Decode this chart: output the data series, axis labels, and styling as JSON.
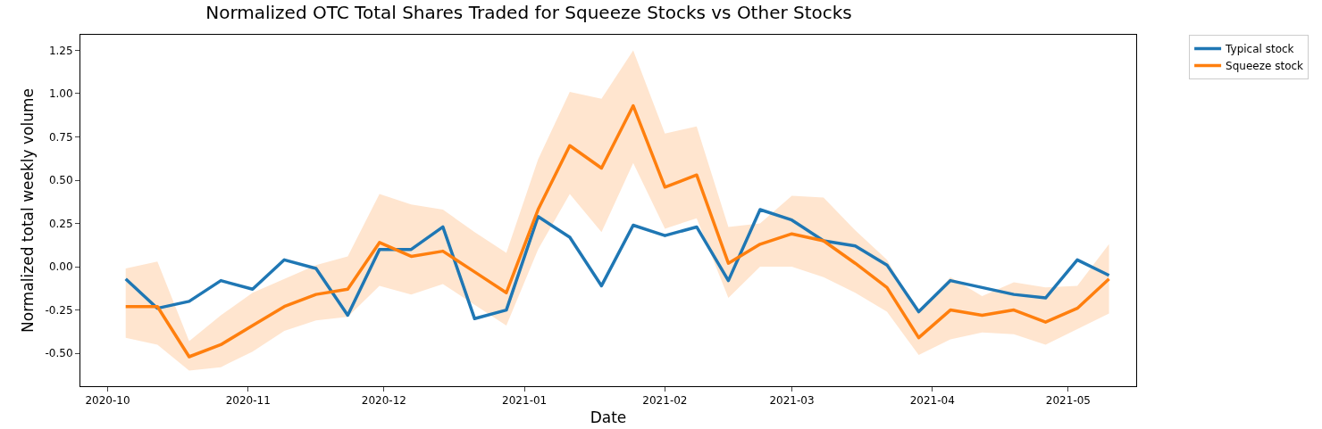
{
  "chart_data": {
    "type": "line",
    "title": "Normalized OTC Total Shares Traded for Squeeze Stocks vs Other Stocks",
    "xlabel": "Date",
    "ylabel": "Normalized total weekly volume",
    "x": [
      "2020-10-05",
      "2020-10-12",
      "2020-10-19",
      "2020-10-26",
      "2020-11-02",
      "2020-11-09",
      "2020-11-16",
      "2020-11-23",
      "2020-11-30",
      "2020-12-07",
      "2020-12-14",
      "2020-12-21",
      "2020-12-28",
      "2021-01-04",
      "2021-01-11",
      "2021-01-18",
      "2021-01-25",
      "2021-02-01",
      "2021-02-08",
      "2021-02-15",
      "2021-02-22",
      "2021-03-01",
      "2021-03-08",
      "2021-03-15",
      "2021-03-22",
      "2021-03-29",
      "2021-04-05",
      "2021-04-12",
      "2021-04-19",
      "2021-04-26",
      "2021-05-03",
      "2021-05-10"
    ],
    "series": [
      {
        "name": "Typical stock",
        "color": "#1f77b4",
        "values": [
          -0.07,
          -0.24,
          -0.2,
          -0.08,
          -0.13,
          0.04,
          -0.01,
          -0.28,
          0.1,
          0.1,
          0.23,
          -0.3,
          -0.25,
          0.29,
          0.17,
          -0.11,
          0.24,
          0.18,
          0.23,
          -0.08,
          0.33,
          0.27,
          0.15,
          0.12,
          0.01,
          -0.26,
          -0.08,
          -0.12,
          -0.16,
          -0.18,
          0.04,
          -0.05
        ]
      },
      {
        "name": "Squeeze stock",
        "color": "#ff7f0e",
        "values": [
          -0.23,
          -0.23,
          -0.52,
          -0.45,
          -0.34,
          -0.23,
          -0.16,
          -0.13,
          0.14,
          0.06,
          0.09,
          -0.03,
          -0.15,
          0.33,
          0.7,
          0.57,
          0.93,
          0.46,
          0.53,
          0.02,
          0.13,
          0.19,
          0.15,
          0.02,
          -0.12,
          -0.41,
          -0.25,
          -0.28,
          -0.25,
          -0.32,
          -0.24,
          -0.07
        ],
        "lower": [
          -0.41,
          -0.45,
          -0.6,
          -0.58,
          -0.49,
          -0.37,
          -0.31,
          -0.29,
          -0.11,
          -0.16,
          -0.1,
          -0.22,
          -0.34,
          0.1,
          0.42,
          0.2,
          0.6,
          0.22,
          0.28,
          -0.18,
          0.0,
          0.0,
          -0.06,
          -0.15,
          -0.26,
          -0.51,
          -0.42,
          -0.38,
          -0.39,
          -0.45,
          -0.36,
          -0.27
        ],
        "upper": [
          -0.01,
          0.03,
          -0.43,
          -0.28,
          -0.15,
          -0.07,
          0.01,
          0.06,
          0.42,
          0.36,
          0.33,
          0.2,
          0.08,
          0.62,
          1.01,
          0.97,
          1.25,
          0.77,
          0.81,
          0.23,
          0.25,
          0.41,
          0.4,
          0.21,
          0.04,
          -0.27,
          -0.06,
          -0.17,
          -0.09,
          -0.12,
          -0.11,
          0.13
        ]
      }
    ],
    "xlim": [
      "2020-09-25",
      "2021-05-16"
    ],
    "xticks": [
      {
        "value": "2020-10-01",
        "label": "2020-10"
      },
      {
        "value": "2020-11-01",
        "label": "2020-11"
      },
      {
        "value": "2020-12-01",
        "label": "2020-12"
      },
      {
        "value": "2021-01-01",
        "label": "2021-01"
      },
      {
        "value": "2021-02-01",
        "label": "2021-02"
      },
      {
        "value": "2021-03-01",
        "label": "2021-03"
      },
      {
        "value": "2021-04-01",
        "label": "2021-04"
      },
      {
        "value": "2021-05-01",
        "label": "2021-05"
      }
    ],
    "ylim": [
      -0.69,
      1.34
    ],
    "yticks": [
      {
        "value": -0.5,
        "label": "-0.50"
      },
      {
        "value": -0.25,
        "label": "-0.25"
      },
      {
        "value": 0,
        "label": "0.00"
      },
      {
        "value": 0.25,
        "label": "0.25"
      },
      {
        "value": 0.5,
        "label": "0.50"
      },
      {
        "value": 0.75,
        "label": "0.75"
      },
      {
        "value": 1,
        "label": "1.00"
      },
      {
        "value": 1.25,
        "label": "1.25"
      }
    ],
    "grid": false,
    "legend": "top right",
    "marker": "none",
    "line_style": "solid"
  }
}
